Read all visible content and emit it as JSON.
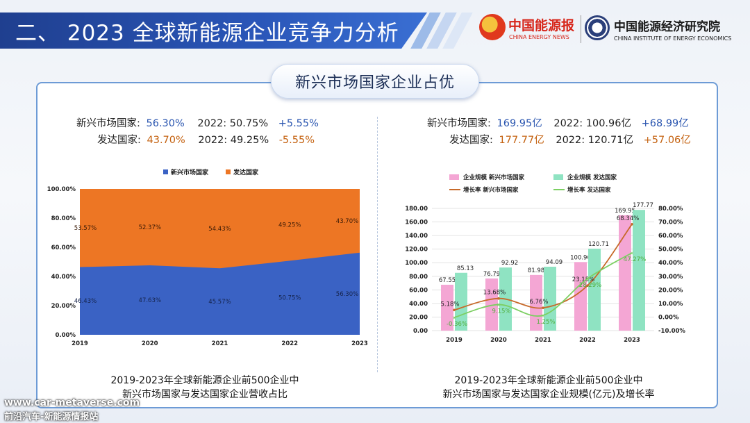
{
  "header": {
    "title": "二、 2023 全球新能源企业竞争力分析"
  },
  "logos": {
    "left_name": "中国能源报",
    "left_en": "CHINA ENERGY NEWS",
    "right_name": "中国能源经济研究院",
    "right_en": "CHINA INSTITUTE OF ENERGY ECONOMICS"
  },
  "subtitle": "新兴市场国家企业占优",
  "left_stats": {
    "row1": {
      "label": "新兴市场国家:",
      "value": "56.30%",
      "prev": "2022: 50.75%",
      "delta": "+5.55%"
    },
    "row2": {
      "label": "发达国家:",
      "value": "43.70%",
      "prev": "2022: 49.25%",
      "delta": "-5.55%"
    }
  },
  "right_stats": {
    "row1": {
      "label": "新兴市场国家:",
      "value": "169.95亿",
      "prev": "2022: 100.96亿",
      "delta": "+68.99亿"
    },
    "row2": {
      "label": "发达国家:",
      "value": "177.77亿",
      "prev": "2022: 120.71亿",
      "delta": "+57.06亿"
    }
  },
  "captions": {
    "left_line1": "2019-2023年全球新能源企业前500企业中",
    "left_line2": "新兴市场国家与发达国家企业营收占比",
    "right_line1": "2019-2023年全球新能源企业前500企业中",
    "right_line2": "新兴市场国家与发达国家企业规模(亿元)及增长率"
  },
  "watermark": {
    "line1": "www.car-metaverse.com",
    "line2": "前沿汽车-新能源情报站"
  },
  "colors": {
    "emerging": "#3a62c4",
    "developed": "#ed7624",
    "bar_emerging": "#f4a6d4",
    "bar_developed": "#8fe3c2",
    "growth_emerging": "#c76a2a",
    "growth_developed": "#7ccf62"
  },
  "chart_data": [
    {
      "type": "area",
      "stacked_percent": true,
      "categories": [
        "2019",
        "2020",
        "2021",
        "2022",
        "2023"
      ],
      "series": [
        {
          "name": "新兴市场国家",
          "values": [
            46.43,
            47.63,
            45.57,
            50.75,
            56.3
          ],
          "labels": [
            "46.43%",
            "47.63%",
            "45.57%",
            "50.75%",
            "56.30%"
          ]
        },
        {
          "name": "发达国家",
          "values": [
            53.57,
            52.37,
            54.43,
            49.25,
            43.7
          ],
          "labels": [
            "53.57%",
            "52.37%",
            "54.43%",
            "49.25%",
            "43.70%"
          ]
        }
      ],
      "yticks": [
        "0.00%",
        "20.00%",
        "40.00%",
        "60.00%",
        "80.00%",
        "100.00%"
      ],
      "ylim": [
        0,
        100
      ],
      "legend": "top"
    },
    {
      "type": "bar",
      "combo": "bar+line",
      "categories": [
        "2019",
        "2020",
        "2021",
        "2022",
        "2023"
      ],
      "series": [
        {
          "name": "企业规模 新兴市场国家",
          "kind": "bar",
          "values": [
            67.55,
            76.79,
            81.98,
            100.96,
            169.95
          ],
          "labels": [
            "67.55",
            "76.79",
            "81.98",
            "100.96",
            "169.95"
          ]
        },
        {
          "name": "企业规模 发达国家",
          "kind": "bar",
          "values": [
            85.13,
            92.92,
            94.09,
            120.71,
            177.77
          ],
          "labels": [
            "85.13",
            "92.92",
            "94.09",
            "120.71",
            "177.77"
          ]
        },
        {
          "name": "增长率 新兴市场国家",
          "kind": "line",
          "axis": "right",
          "values": [
            5.18,
            13.68,
            6.76,
            23.15,
            68.34
          ],
          "labels": [
            "5.18%",
            "13.68%",
            "6.76%",
            "23.15%",
            "68.34%"
          ]
        },
        {
          "name": "增长率 发达国家",
          "kind": "line",
          "axis": "right",
          "values": [
            -0.36,
            9.15,
            1.25,
            28.29,
            47.27
          ],
          "labels": [
            "-0.36%",
            "9.15%",
            "1.25%",
            "28.29%",
            "47.27%"
          ]
        }
      ],
      "yticks_left": [
        "0.00",
        "20.00",
        "40.00",
        "60.00",
        "80.00",
        "100.00",
        "120.00",
        "140.00",
        "160.00",
        "180.00"
      ],
      "ylim_left": [
        0,
        180
      ],
      "yticks_right": [
        "-10.00%",
        "0.00%",
        "10.00%",
        "20.00%",
        "30.00%",
        "40.00%",
        "50.00%",
        "60.00%",
        "70.00%",
        "80.00%"
      ],
      "ylim_right": [
        -10,
        80
      ],
      "legend": "top"
    }
  ]
}
